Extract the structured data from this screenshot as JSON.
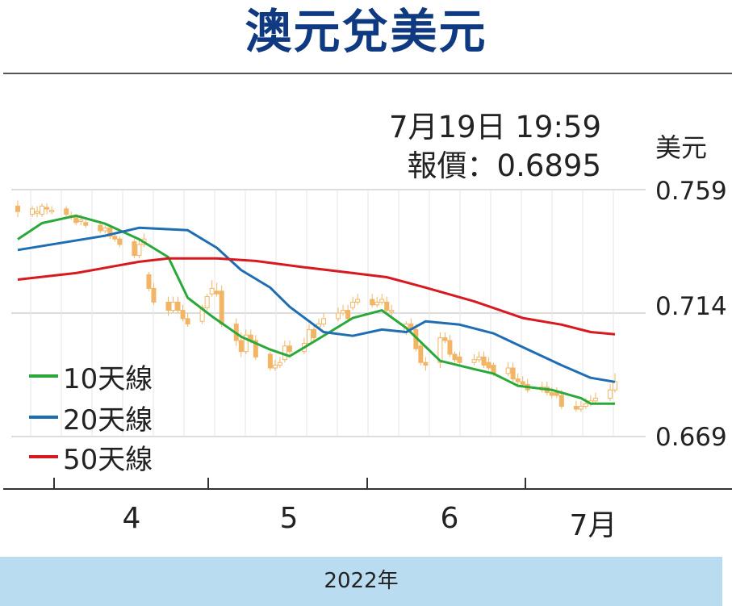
{
  "title": "澳元兌美元",
  "info": {
    "date_line": "7月19日 19:59",
    "price_line": "報價：0.6895"
  },
  "chart_data": {
    "type": "candlestick",
    "unit_label": "美元",
    "y_ticks": [
      "0.759",
      "0.714",
      "0.669"
    ],
    "ylim": [
      0.669,
      0.759
    ],
    "x_ticks": [
      "4",
      "5",
      "6",
      "7月"
    ],
    "x_caption": "2022年",
    "grid": true,
    "legend_position": "bottom-left",
    "colors": {
      "candle": "#f2b565",
      "ma10": "#2aa83a",
      "ma20": "#1f6db3",
      "ma50": "#d71920",
      "grid": "#bbbbbb",
      "axis": "#333333"
    },
    "series": [
      {
        "name": "10天線",
        "color": "#2aa83a",
        "x": [
          "2022-03-18",
          "2022-03-23",
          "2022-03-30",
          "2022-04-05",
          "2022-04-12",
          "2022-04-18",
          "2022-04-22",
          "2022-04-27",
          "2022-05-03",
          "2022-05-09",
          "2022-05-13",
          "2022-05-18",
          "2022-05-26",
          "2022-06-01",
          "2022-06-06",
          "2022-06-13",
          "2022-06-20",
          "2022-06-24",
          "2022-06-29",
          "2022-07-06",
          "2022-07-12",
          "2022-07-14",
          "2022-07-19"
        ],
        "values": [
          0.7409,
          0.7468,
          0.7495,
          0.7466,
          0.7409,
          0.7344,
          0.7196,
          0.7128,
          0.7054,
          0.7007,
          0.6983,
          0.7036,
          0.7122,
          0.715,
          0.7086,
          0.6966,
          0.6936,
          0.6919,
          0.6875,
          0.686,
          0.683,
          0.681,
          0.681
        ]
      },
      {
        "name": "20天線",
        "color": "#1f6db3",
        "x": [
          "2022-03-18",
          "2022-04-05",
          "2022-04-12",
          "2022-04-22",
          "2022-04-28",
          "2022-05-03",
          "2022-05-09",
          "2022-05-13",
          "2022-05-20",
          "2022-05-26",
          "2022-06-01",
          "2022-06-06",
          "2022-06-10",
          "2022-06-17",
          "2022-06-24",
          "2022-06-29",
          "2022-07-08",
          "2022-07-14",
          "2022-07-19"
        ],
        "values": [
          0.737,
          0.7422,
          0.7451,
          0.7442,
          0.7378,
          0.7297,
          0.7233,
          0.7163,
          0.7071,
          0.7057,
          0.708,
          0.7071,
          0.711,
          0.7098,
          0.7066,
          0.7024,
          0.695,
          0.6904,
          0.6889
        ]
      },
      {
        "name": "50天線",
        "color": "#d71920",
        "x": [
          "2022-03-18",
          "2022-03-30",
          "2022-04-12",
          "2022-04-18",
          "2022-04-28",
          "2022-05-06",
          "2022-05-16",
          "2022-05-26",
          "2022-06-02",
          "2022-06-10",
          "2022-06-20",
          "2022-06-30",
          "2022-07-08",
          "2022-07-14",
          "2022-07-19"
        ],
        "values": [
          0.7262,
          0.7286,
          0.7327,
          0.7339,
          0.7339,
          0.733,
          0.7307,
          0.7286,
          0.7271,
          0.7233,
          0.7183,
          0.7122,
          0.7098,
          0.7071,
          0.7063
        ]
      }
    ],
    "candles": {
      "x": [
        "2022-03-18",
        "2022-03-21",
        "2022-03-22",
        "2022-03-23",
        "2022-03-24",
        "2022-03-25",
        "2022-03-28",
        "2022-03-29",
        "2022-03-30",
        "2022-03-31",
        "2022-04-01",
        "2022-04-04",
        "2022-04-05",
        "2022-04-06",
        "2022-04-07",
        "2022-04-08",
        "2022-04-11",
        "2022-04-12",
        "2022-04-13",
        "2022-04-14",
        "2022-04-15",
        "2022-04-18",
        "2022-04-19",
        "2022-04-20",
        "2022-04-21",
        "2022-04-22",
        "2022-04-25",
        "2022-04-26",
        "2022-04-27",
        "2022-04-28",
        "2022-04-29",
        "2022-05-02",
        "2022-05-03",
        "2022-05-04",
        "2022-05-05",
        "2022-05-06",
        "2022-05-09",
        "2022-05-10",
        "2022-05-11",
        "2022-05-12",
        "2022-05-13",
        "2022-05-16",
        "2022-05-17",
        "2022-05-18",
        "2022-05-19",
        "2022-05-20",
        "2022-05-23",
        "2022-05-24",
        "2022-05-25",
        "2022-05-26",
        "2022-05-27",
        "2022-05-30",
        "2022-05-31",
        "2022-06-01",
        "2022-06-02",
        "2022-06-03",
        "2022-06-06",
        "2022-06-07",
        "2022-06-08",
        "2022-06-09",
        "2022-06-10",
        "2022-06-13",
        "2022-06-14",
        "2022-06-15",
        "2022-06-16",
        "2022-06-17",
        "2022-06-20",
        "2022-06-21",
        "2022-06-22",
        "2022-06-23",
        "2022-06-24",
        "2022-06-27",
        "2022-06-28",
        "2022-06-29",
        "2022-06-30",
        "2022-07-01",
        "2022-07-04",
        "2022-07-05",
        "2022-07-06",
        "2022-07-07",
        "2022-07-08",
        "2022-07-11",
        "2022-07-12",
        "2022-07-13",
        "2022-07-14",
        "2022-07-15",
        "2022-07-18",
        "2022-07-19"
      ],
      "open": [
        0.753,
        0.75,
        0.751,
        0.75,
        0.7525,
        0.751,
        0.752,
        0.7495,
        0.749,
        0.748,
        0.747,
        0.746,
        0.744,
        0.745,
        0.742,
        0.741,
        0.74,
        0.735,
        0.739,
        0.728,
        0.723,
        0.718,
        0.715,
        0.718,
        0.715,
        0.712,
        0.711,
        0.716,
        0.721,
        0.722,
        0.722,
        0.71,
        0.704,
        0.7,
        0.706,
        0.704,
        0.699,
        0.694,
        0.695,
        0.697,
        0.702,
        0.7,
        0.703,
        0.708,
        0.709,
        0.71,
        0.712,
        0.714,
        0.715,
        0.716,
        0.718,
        0.719,
        0.717,
        0.718,
        0.718,
        0.715,
        0.707,
        0.71,
        0.708,
        0.702,
        0.696,
        0.696,
        0.705,
        0.704,
        0.699,
        0.698,
        0.696,
        0.697,
        0.698,
        0.696,
        0.695,
        0.692,
        0.694,
        0.69,
        0.689,
        0.688,
        0.686,
        0.687,
        0.685,
        0.685,
        0.684,
        0.68,
        0.679,
        0.68,
        0.681,
        0.682,
        0.683,
        0.686
      ],
      "close": [
        0.751,
        0.752,
        0.751,
        0.753,
        0.752,
        0.7515,
        0.75,
        0.749,
        0.747,
        0.748,
        0.746,
        0.744,
        0.745,
        0.742,
        0.741,
        0.739,
        0.735,
        0.739,
        0.741,
        0.723,
        0.718,
        0.715,
        0.718,
        0.715,
        0.712,
        0.71,
        0.716,
        0.72,
        0.723,
        0.721,
        0.71,
        0.704,
        0.7,
        0.706,
        0.704,
        0.698,
        0.694,
        0.695,
        0.696,
        0.702,
        0.7,
        0.703,
        0.708,
        0.705,
        0.71,
        0.712,
        0.714,
        0.715,
        0.712,
        0.718,
        0.719,
        0.717,
        0.718,
        0.719,
        0.715,
        0.715,
        0.71,
        0.708,
        0.701,
        0.696,
        0.695,
        0.705,
        0.704,
        0.699,
        0.697,
        0.696,
        0.697,
        0.698,
        0.695,
        0.694,
        0.692,
        0.694,
        0.69,
        0.689,
        0.688,
        0.686,
        0.687,
        0.685,
        0.684,
        0.684,
        0.68,
        0.679,
        0.68,
        0.681,
        0.682,
        0.683,
        0.686,
        0.689
      ],
      "high": [
        0.755,
        0.753,
        0.753,
        0.754,
        0.754,
        0.753,
        0.753,
        0.751,
        0.75,
        0.75,
        0.748,
        0.747,
        0.746,
        0.746,
        0.743,
        0.742,
        0.741,
        0.741,
        0.743,
        0.729,
        0.725,
        0.72,
        0.72,
        0.72,
        0.717,
        0.714,
        0.717,
        0.721,
        0.726,
        0.725,
        0.724,
        0.712,
        0.707,
        0.708,
        0.708,
        0.706,
        0.7,
        0.697,
        0.698,
        0.704,
        0.704,
        0.705,
        0.71,
        0.71,
        0.712,
        0.714,
        0.716,
        0.717,
        0.717,
        0.72,
        0.721,
        0.721,
        0.72,
        0.721,
        0.72,
        0.717,
        0.711,
        0.712,
        0.71,
        0.704,
        0.698,
        0.707,
        0.707,
        0.706,
        0.7,
        0.7,
        0.699,
        0.7,
        0.7,
        0.698,
        0.696,
        0.696,
        0.696,
        0.692,
        0.691,
        0.69,
        0.689,
        0.689,
        0.687,
        0.687,
        0.686,
        0.682,
        0.682,
        0.683,
        0.684,
        0.685,
        0.688,
        0.692
      ],
      "low": [
        0.749,
        0.749,
        0.749,
        0.749,
        0.75,
        0.75,
        0.749,
        0.748,
        0.746,
        0.746,
        0.745,
        0.743,
        0.743,
        0.741,
        0.74,
        0.738,
        0.734,
        0.734,
        0.738,
        0.722,
        0.717,
        0.713,
        0.714,
        0.714,
        0.711,
        0.709,
        0.71,
        0.715,
        0.72,
        0.72,
        0.709,
        0.702,
        0.698,
        0.699,
        0.703,
        0.697,
        0.693,
        0.693,
        0.694,
        0.696,
        0.699,
        0.699,
        0.702,
        0.704,
        0.708,
        0.709,
        0.711,
        0.713,
        0.711,
        0.715,
        0.717,
        0.716,
        0.716,
        0.717,
        0.714,
        0.713,
        0.706,
        0.707,
        0.7,
        0.695,
        0.693,
        0.694,
        0.703,
        0.698,
        0.696,
        0.695,
        0.695,
        0.696,
        0.694,
        0.693,
        0.691,
        0.691,
        0.689,
        0.688,
        0.687,
        0.685,
        0.685,
        0.684,
        0.683,
        0.683,
        0.679,
        0.678,
        0.678,
        0.679,
        0.68,
        0.681,
        0.682,
        0.685
      ]
    }
  }
}
